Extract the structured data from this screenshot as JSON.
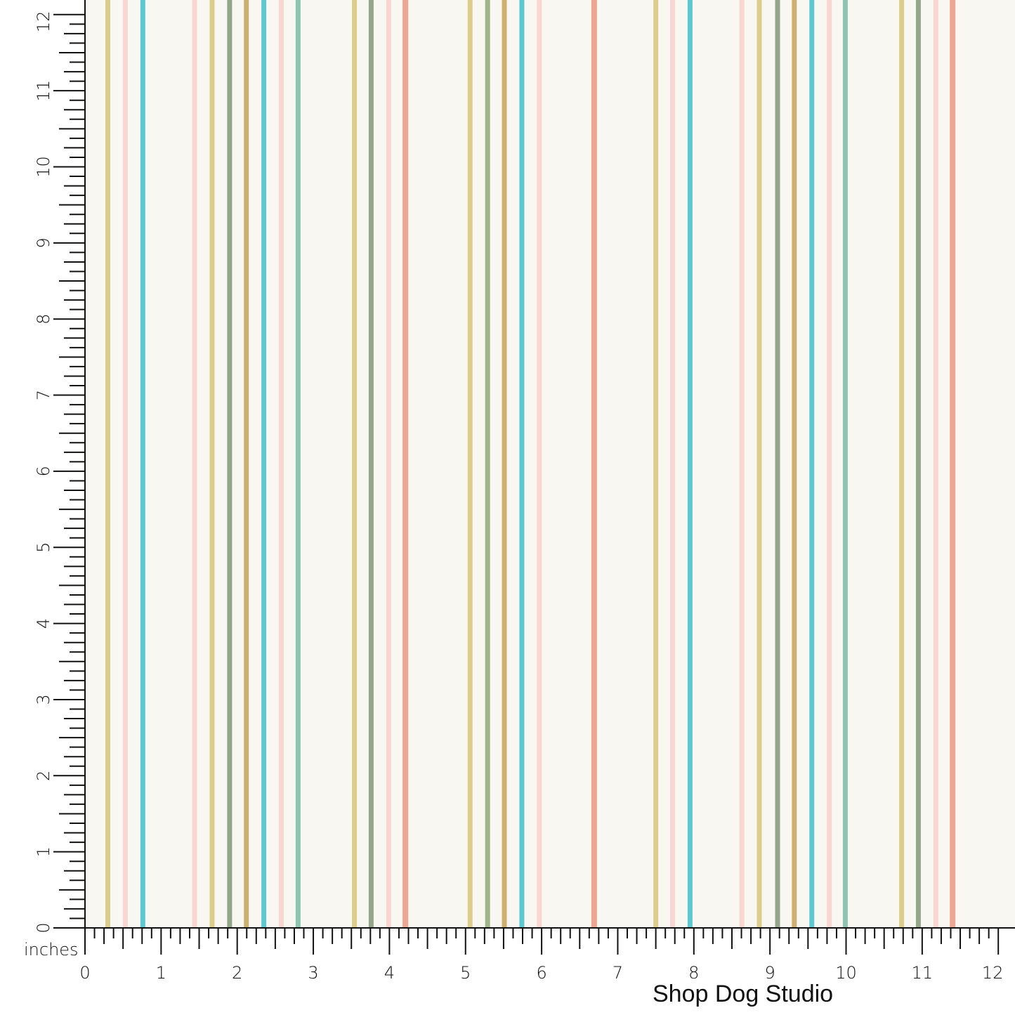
{
  "brand": "Shop Dog Studio",
  "units_label": "inches",
  "ruler": {
    "max_inches": 12,
    "subdivisions": 8,
    "labels": [
      "0",
      "1",
      "2",
      "3",
      "4",
      "5",
      "6",
      "7",
      "8",
      "9",
      "10",
      "11",
      "12"
    ]
  },
  "background_color": "#f9f7f2",
  "stripe_colors": {
    "yellow": "#dccd8c",
    "pink": "#f9d6d2",
    "cyan": "#5ec8d1",
    "sage": "#93a68a",
    "gold": "#cdb070",
    "teal": "#8fc4b2",
    "salmon": "#eea592",
    "green": "#9fb587"
  },
  "stripes": [
    {
      "at_in": 0.3,
      "color": "yellow"
    },
    {
      "at_in": 0.53,
      "color": "pink"
    },
    {
      "at_in": 0.76,
      "color": "cyan"
    },
    {
      "at_in": 1.44,
      "color": "pink"
    },
    {
      "at_in": 1.67,
      "color": "yellow"
    },
    {
      "at_in": 1.9,
      "color": "sage"
    },
    {
      "at_in": 2.12,
      "color": "gold"
    },
    {
      "at_in": 2.35,
      "color": "cyan"
    },
    {
      "at_in": 2.58,
      "color": "pink"
    },
    {
      "at_in": 2.8,
      "color": "teal"
    },
    {
      "at_in": 3.54,
      "color": "yellow"
    },
    {
      "at_in": 3.76,
      "color": "sage"
    },
    {
      "at_in": 3.99,
      "color": "pink"
    },
    {
      "at_in": 4.21,
      "color": "salmon"
    },
    {
      "at_in": 5.06,
      "color": "yellow"
    },
    {
      "at_in": 5.29,
      "color": "green"
    },
    {
      "at_in": 5.51,
      "color": "gold"
    },
    {
      "at_in": 5.74,
      "color": "cyan"
    },
    {
      "at_in": 5.97,
      "color": "pink"
    },
    {
      "at_in": 6.69,
      "color": "salmon"
    },
    {
      "at_in": 7.5,
      "color": "yellow"
    },
    {
      "at_in": 7.72,
      "color": "pink"
    },
    {
      "at_in": 7.95,
      "color": "cyan"
    },
    {
      "at_in": 8.63,
      "color": "pink"
    },
    {
      "at_in": 8.86,
      "color": "yellow"
    },
    {
      "at_in": 9.1,
      "color": "sage"
    },
    {
      "at_in": 9.32,
      "color": "gold"
    },
    {
      "at_in": 9.55,
      "color": "cyan"
    },
    {
      "at_in": 9.78,
      "color": "pink"
    },
    {
      "at_in": 9.99,
      "color": "teal"
    },
    {
      "at_in": 10.73,
      "color": "yellow"
    },
    {
      "at_in": 10.95,
      "color": "sage"
    },
    {
      "at_in": 11.18,
      "color": "pink"
    },
    {
      "at_in": 11.4,
      "color": "salmon"
    }
  ]
}
